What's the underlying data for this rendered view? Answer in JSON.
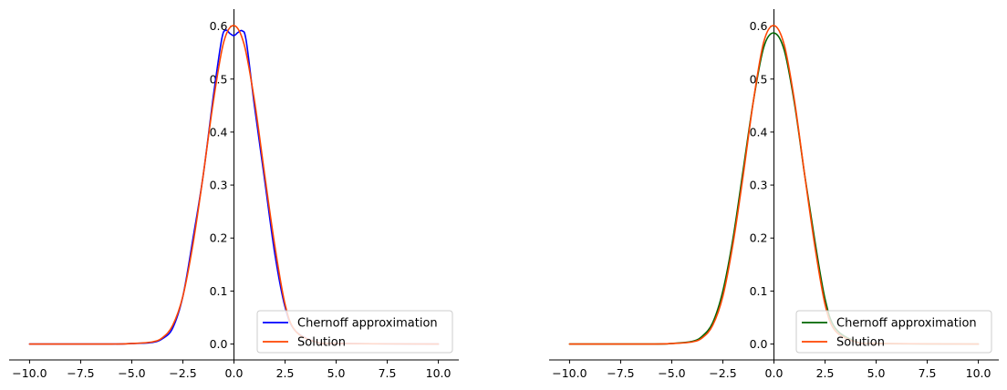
{
  "chart_data": [
    {
      "type": "line",
      "xlim": [
        -11,
        11
      ],
      "ylim": [
        -0.03,
        0.632
      ],
      "x_ticks": [
        -10,
        -7.5,
        -5,
        -2.5,
        0,
        2.5,
        5,
        7.5,
        10
      ],
      "x_tick_labels": [
        "−10.0",
        "−7.5",
        "−5.0",
        "−2.5",
        "0.0",
        "2.5",
        "5.0",
        "7.5",
        "10.0"
      ],
      "y_ticks": [
        0,
        0.1,
        0.2,
        0.3,
        0.4,
        0.5,
        0.6
      ],
      "y_tick_labels": [
        "0.0",
        "0.1",
        "0.2",
        "0.3",
        "0.4",
        "0.5",
        "0.6"
      ],
      "grid": false,
      "legend_position": "lower-right",
      "series": [
        {
          "name": "Chernoff approximation",
          "color": "#0000ff",
          "x": [
            -10,
            -6,
            -5,
            -4,
            -3.5,
            -3,
            -2.5,
            -2,
            -1.5,
            -1,
            -0.6,
            -0.4,
            -0.2,
            0,
            0.2,
            0.4,
            0.6,
            1,
            1.5,
            2,
            2.5,
            3,
            4,
            5,
            10
          ],
          "y": [
            0,
            0,
            0.001,
            0.003,
            0.01,
            0.03,
            0.09,
            0.2,
            0.32,
            0.47,
            0.575,
            0.592,
            0.586,
            0.582,
            0.588,
            0.591,
            0.572,
            0.45,
            0.31,
            0.17,
            0.07,
            0.025,
            0.004,
            0.001,
            0
          ]
        },
        {
          "name": "Solution",
          "color": "#ff4500",
          "x": [
            -10,
            -6,
            -5,
            -4,
            -3.5,
            -3,
            -2.5,
            -2,
            -1.5,
            -1,
            -0.5,
            0,
            0.5,
            1,
            1.5,
            2,
            2.5,
            3,
            4,
            5,
            10
          ],
          "y": [
            0,
            0,
            0.001,
            0.004,
            0.012,
            0.035,
            0.09,
            0.19,
            0.32,
            0.46,
            0.57,
            0.601,
            0.565,
            0.46,
            0.32,
            0.185,
            0.075,
            0.025,
            0.004,
            0.001,
            0
          ]
        }
      ]
    },
    {
      "type": "line",
      "xlim": [
        -11,
        11
      ],
      "ylim": [
        -0.03,
        0.632
      ],
      "x_ticks": [
        -10,
        -7.5,
        -5,
        -2.5,
        0,
        2.5,
        5,
        7.5,
        10
      ],
      "x_tick_labels": [
        "−10.0",
        "−7.5",
        "−5.0",
        "−2.5",
        "0.0",
        "2.5",
        "5.0",
        "7.5",
        "10.0"
      ],
      "y_ticks": [
        0,
        0.1,
        0.2,
        0.3,
        0.4,
        0.5,
        0.6
      ],
      "y_tick_labels": [
        "0.0",
        "0.1",
        "0.2",
        "0.3",
        "0.4",
        "0.5",
        "0.6"
      ],
      "grid": false,
      "legend_position": "lower-right",
      "series": [
        {
          "name": "Chernoff approximation",
          "color": "#006400",
          "x": [
            -10,
            -6,
            -5,
            -4,
            -3.5,
            -3,
            -2.5,
            -2,
            -1.5,
            -1,
            -0.5,
            0,
            0.5,
            1,
            1.5,
            2,
            2.5,
            3,
            4,
            5,
            10
          ],
          "y": [
            0,
            0,
            0.001,
            0.005,
            0.015,
            0.04,
            0.1,
            0.2,
            0.33,
            0.46,
            0.56,
            0.587,
            0.555,
            0.455,
            0.32,
            0.195,
            0.085,
            0.03,
            0.005,
            0.001,
            0
          ]
        },
        {
          "name": "Solution",
          "color": "#ff4500",
          "x": [
            -10,
            -6,
            -5,
            -4,
            -3.5,
            -3,
            -2.5,
            -2,
            -1.5,
            -1,
            -0.5,
            0,
            0.5,
            1,
            1.5,
            2,
            2.5,
            3,
            4,
            5,
            10
          ],
          "y": [
            0,
            0,
            0.001,
            0.004,
            0.012,
            0.035,
            0.09,
            0.19,
            0.32,
            0.46,
            0.57,
            0.601,
            0.565,
            0.46,
            0.32,
            0.185,
            0.075,
            0.025,
            0.004,
            0.001,
            0
          ]
        }
      ]
    }
  ]
}
